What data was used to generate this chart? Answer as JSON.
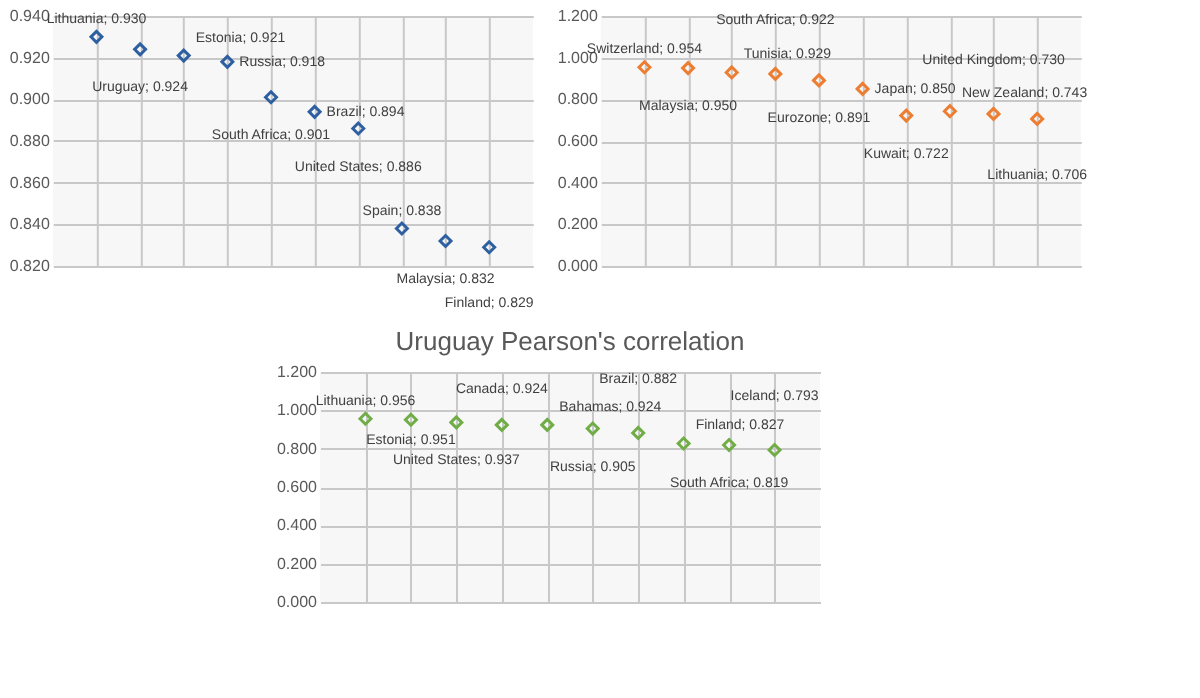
{
  "chart_data": [
    {
      "type": "scatter",
      "categories": [
        null,
        null,
        null,
        null,
        null,
        null,
        null,
        null,
        null,
        null
      ],
      "series": [
        {
          "color": "#2e5fa1",
          "values": [
            0.93,
            0.924,
            0.921,
            0.918,
            0.901,
            0.894,
            0.886,
            0.838,
            0.832,
            0.829
          ],
          "value_labels": [
            "Lithuania; 0.930",
            "Uruguay; 0.924",
            "Estonia; 0.921",
            "Russia; 0.918",
            "South Africa; 0.901",
            "Brazil; 0.894",
            "United States; 0.886",
            "Spain; 0.838",
            "Malaysia; 0.832",
            "Finland; 0.829"
          ]
        }
      ],
      "ylim": [
        0.82,
        0.94
      ],
      "yticks": [
        {
          "value": 0.82,
          "label": "0.820"
        },
        {
          "value": 0.84,
          "label": "0.840"
        },
        {
          "value": 0.86,
          "label": "0.860"
        },
        {
          "value": 0.88,
          "label": "0.880"
        },
        {
          "value": 0.9,
          "label": "0.900"
        },
        {
          "value": 0.92,
          "label": "0.920"
        },
        {
          "value": 0.94,
          "label": "0.940"
        }
      ],
      "grid": true,
      "marker": "diamond",
      "tick_labels": "y"
    },
    {
      "type": "scatter",
      "categories": [
        null,
        null,
        null,
        null,
        null,
        null,
        null,
        null,
        null,
        null
      ],
      "series": [
        {
          "color": "#ed7d31",
          "values": [
            0.954,
            0.95,
            0.929,
            0.922,
            0.891,
            0.85,
            0.722,
            0.743,
            0.73,
            0.706
          ],
          "value_labels": [
            "Switzerland; 0.954",
            "Malaysia; 0.950",
            "Tunisia; 0.929",
            "South Africa; 0.922",
            "Eurozone; 0.891",
            "Japan; 0.850",
            "Kuwait; 0.722",
            "New Zealand; 0.743",
            "United Kingdom; 0.730",
            "Lithuania; 0.706"
          ]
        }
      ],
      "ylim": [
        0,
        1.2
      ],
      "yticks": [
        {
          "value": 0,
          "label": "0.000"
        },
        {
          "value": 0.2,
          "label": "0.200"
        },
        {
          "value": 0.4,
          "label": "0.400"
        },
        {
          "value": 0.6,
          "label": "0.600"
        },
        {
          "value": 0.8,
          "label": "0.800"
        },
        {
          "value": 1,
          "label": "1.000"
        },
        {
          "value": 1.2,
          "label": "1.200"
        }
      ],
      "grid": true,
      "marker": "diamond",
      "tick_labels": "y"
    },
    {
      "type": "scatter",
      "title": "Uruguay Pearson's correlation",
      "categories": [
        null,
        null,
        null,
        null,
        null,
        null,
        null,
        null,
        null,
        null
      ],
      "series": [
        {
          "color": "#70ad47",
          "values": [
            0.956,
            0.951,
            0.937,
            0.924,
            0.924,
            0.905,
            0.882,
            0.827,
            0.819,
            0.793
          ],
          "value_labels": [
            "Lithuania; 0.956",
            "Estonia; 0.951",
            "United States; 0.937",
            "Canada; 0.924",
            "Bahamas; 0.924",
            "Russia; 0.905",
            "Brazil; 0.882",
            "Finland; 0.827",
            "South Africa; 0.819",
            "Iceland; 0.793"
          ]
        }
      ],
      "ylim": [
        0,
        1.2
      ],
      "yticks": [
        {
          "value": 0,
          "label": "0.000"
        },
        {
          "value": 0.2,
          "label": "0.200"
        },
        {
          "value": 0.4,
          "label": "0.400"
        },
        {
          "value": 0.6,
          "label": "0.600"
        },
        {
          "value": 0.8,
          "label": "0.800"
        },
        {
          "value": 1,
          "label": "1.000"
        },
        {
          "value": 1.2,
          "label": "1.200"
        }
      ],
      "grid": true,
      "marker": "diamond",
      "tick_labels": "y"
    }
  ]
}
